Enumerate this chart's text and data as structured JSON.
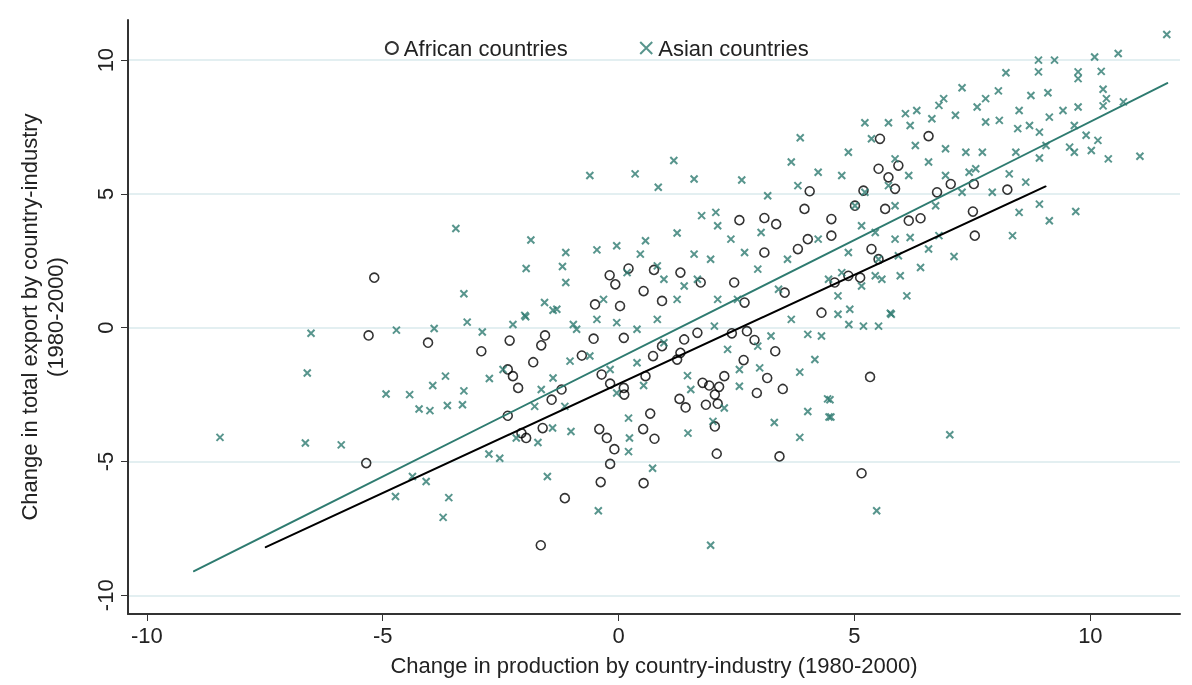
{
  "chart_data": {
    "type": "scatter",
    "xlabel": "Change in production by country-industry (1980-2000)",
    "ylabel": "Change in total export by country-industry\n(1980-2000)",
    "xlim": [
      -10.4,
      11.9
    ],
    "ylim": [
      -10.7,
      11.5
    ],
    "xticks": [
      -10,
      -5,
      0,
      5,
      10
    ],
    "yticks": [
      -10,
      -5,
      0,
      5,
      10
    ],
    "grid": "y",
    "legend": "top",
    "series": [
      {
        "name": "African countries",
        "color": "#000000",
        "marker": "circle",
        "x": [
          -5.3,
          -4.04,
          -5.35,
          -5.18,
          4.05,
          3.94,
          2.56,
          3.09,
          3.34,
          0.21,
          0.75,
          -0.19,
          -0.07,
          0.53,
          1.31,
          1.74,
          -0.5,
          0.92,
          2.45,
          4.01,
          4.51,
          3.8,
          3.09,
          2.67,
          3.52,
          0.03,
          5.54,
          6.57,
          5.93,
          5.51,
          5.72,
          5.86,
          5.19,
          6.75,
          7.04,
          7.53,
          8.24,
          5.65,
          5.01,
          6.15,
          6.4,
          7.51,
          7.55,
          5.36,
          5.51,
          4.51,
          4.87,
          5.12,
          4.58,
          -2.91,
          -2.31,
          -1.56,
          -1.64,
          -1.81,
          -2.35,
          -2.24,
          -2.13,
          -0.78,
          -0.53,
          -1.21,
          -1.42,
          -2.35,
          -2.06,
          -1.96,
          -1.61,
          -0.36,
          -0.18,
          0.11,
          0.12,
          -0.41,
          -0.25,
          -0.09,
          -0.18,
          -0.38,
          -1.14,
          -1.65,
          0.52,
          0.76,
          0.67,
          0.53,
          0.57,
          0.73,
          0.92,
          1.24,
          1.31,
          1.39,
          1.67,
          1.29,
          1.42,
          1.78,
          1.92,
          2.13,
          2.24,
          2.04,
          1.85,
          2.1,
          2.04,
          2.08,
          2.4,
          2.72,
          2.88,
          2.65,
          3.32,
          3.15,
          2.93,
          3.48,
          3.41,
          4.3,
          0.11,
          5.33,
          5.15
        ],
        "values": [
          -0.29,
          -0.56,
          -5.06,
          1.87,
          5.1,
          4.44,
          4.02,
          4.1,
          3.87,
          2.21,
          2.16,
          1.96,
          1.62,
          1.37,
          2.06,
          1.69,
          0.87,
          1.0,
          1.69,
          3.31,
          4.06,
          2.94,
          2.81,
          0.94,
          1.31,
          0.81,
          7.06,
          7.16,
          6.06,
          5.94,
          5.62,
          5.19,
          5.12,
          5.06,
          5.37,
          5.37,
          5.16,
          4.44,
          4.56,
          4.0,
          4.09,
          4.34,
          3.44,
          2.94,
          2.56,
          3.44,
          1.94,
          1.87,
          1.69,
          -0.88,
          -0.48,
          -0.29,
          -0.66,
          -1.29,
          -1.56,
          -1.81,
          -2.25,
          -1.04,
          -0.41,
          -2.31,
          -2.69,
          -3.29,
          -3.94,
          -4.12,
          -3.75,
          -1.75,
          -2.09,
          -2.25,
          -2.5,
          -3.79,
          -4.12,
          -4.54,
          -5.09,
          -5.77,
          -6.37,
          -8.13,
          -3.79,
          -4.15,
          -3.21,
          -5.81,
          -1.81,
          -1.06,
          -0.69,
          -1.19,
          -0.94,
          -0.44,
          -0.19,
          -2.66,
          -2.98,
          -2.06,
          -2.16,
          -2.21,
          -1.81,
          -2.5,
          -2.88,
          -2.84,
          -3.69,
          -4.71,
          -0.21,
          -0.13,
          -0.46,
          -1.21,
          -0.88,
          -1.88,
          -2.44,
          -2.29,
          -4.81,
          0.56,
          -0.38,
          -1.84,
          -5.44
        ]
      },
      {
        "name": "Asian countries",
        "color": "#2e7b70",
        "marker": "cross",
        "x": [
          -8.45,
          -6.52,
          -6.6,
          -6.64,
          -5.88,
          -4.71,
          -3.91,
          -3.21,
          -4.93,
          -4.43,
          -4.23,
          -4.0,
          -3.94,
          -3.67,
          -3.63,
          -3.31,
          -3.28,
          -4.37,
          -4.08,
          -4.73,
          -3.6,
          -3.72,
          -3.45,
          -3.28,
          3.85,
          1.17,
          -0.61,
          0.35,
          0.84,
          1.6,
          2.61,
          3.66,
          -1.86,
          -1.12,
          -1.96,
          -1.19,
          -1.12,
          -1.57,
          -1.39,
          -0.46,
          -0.04,
          0.57,
          1.24,
          1.76,
          2.06,
          3.16,
          0.46,
          1.6,
          0.82,
          2.38,
          2.67,
          3.02,
          1.95,
          0.18,
          -0.32,
          0.96,
          1.39,
          -1.99,
          2.1,
          3.8,
          4.23,
          11.62,
          10.59,
          10.09,
          9.24,
          8.9,
          8.9,
          9.74,
          10.23,
          9.74,
          8.21,
          7.28,
          8.05,
          8.74,
          9.1,
          10.27,
          10.34,
          10.7,
          10.27,
          9.74,
          9.42,
          9.13,
          8.49,
          7.78,
          7.6,
          6.89,
          6.79,
          6.32,
          6.08,
          5.22,
          5.72,
          6.18,
          6.64,
          7.14,
          7.78,
          8.07,
          8.71,
          8.92,
          9.66,
          9.91,
          10.16,
          9.56,
          10.02,
          9.66,
          10.38,
          11.05,
          8.92,
          9.06,
          8.46,
          8.42,
          8.28,
          8.63,
          8.49,
          8.92,
          9.13,
          9.69,
          8.35,
          7.11,
          6.4,
          5.97,
          6.11,
          5.76,
          5.58,
          6.57,
          6.18,
          6.79,
          4.9,
          4.65,
          4.65,
          7.28,
          7.57,
          7.92,
          4.87,
          4.73,
          5.36,
          5.86,
          6.29,
          6.57,
          6.93,
          7.36,
          7.71,
          7.43,
          6.93,
          6.15,
          5.72,
          5.22,
          5.01,
          5.86,
          6.72,
          5.44,
          5.86,
          5.15,
          4.87,
          5.51,
          5.93,
          5.44,
          5.15,
          4.73,
          -2.74,
          -2.75,
          -2.52,
          -1.71,
          -1.51,
          -1.01,
          -1.4,
          -0.43,
          0.21,
          0.23,
          0.21,
          0.72,
          1.47,
          1.95,
          2.0,
          2.24,
          3.3,
          3.84,
          4.01,
          4.43,
          4.46,
          3.84,
          4.16,
          2.56,
          2.56,
          2.99,
          1.53,
          1.46,
          0.53,
          -0.04,
          -1.14,
          -1.64,
          -1.78,
          -2.17,
          -2.24,
          -1.97,
          -2.89,
          -2.45,
          -1.03,
          -1.39,
          -0.61,
          -0.18,
          0.39,
          0.96,
          -0.96,
          -0.04,
          2.03,
          3.23,
          3.66,
          4.01,
          4.3,
          2.95,
          2.31,
          7.02,
          5.47,
          4.88,
          5.19,
          5.51,
          5.78,
          4.48,
          4.5,
          1.67,
          1.24,
          2.52,
          2.95,
          3.58,
          4.23,
          4.45,
          3.39,
          2.1,
          0.82,
          0.39,
          -0.46,
          -0.89,
          -1.31
        ],
        "values": [
          -4.1,
          -0.21,
          -1.69,
          -4.31,
          -4.38,
          -0.09,
          -0.03,
          0.21,
          -2.48,
          -2.5,
          -3.04,
          -3.1,
          -2.16,
          -1.81,
          -2.91,
          -2.88,
          -2.36,
          -5.56,
          -5.75,
          -6.31,
          -6.35,
          -7.09,
          3.71,
          1.27,
          7.1,
          6.25,
          5.69,
          5.75,
          5.25,
          5.56,
          5.52,
          6.19,
          3.28,
          2.81,
          2.21,
          2.29,
          1.69,
          0.94,
          0.65,
          2.91,
          3.06,
          3.25,
          3.54,
          4.19,
          4.31,
          4.93,
          2.75,
          2.75,
          2.31,
          3.31,
          2.81,
          3.56,
          2.56,
          2.06,
          1.06,
          1.81,
          1.56,
          0.46,
          3.81,
          5.31,
          5.81,
          10.96,
          10.25,
          10.12,
          10.0,
          10.0,
          9.56,
          9.56,
          9.58,
          9.31,
          9.53,
          8.97,
          8.85,
          8.68,
          8.78,
          8.91,
          8.56,
          8.44,
          8.29,
          8.25,
          8.12,
          7.87,
          8.12,
          8.56,
          8.25,
          8.56,
          8.31,
          8.12,
          8.0,
          7.66,
          7.66,
          7.56,
          7.81,
          7.94,
          7.69,
          7.75,
          7.56,
          7.31,
          7.56,
          7.19,
          7.0,
          6.75,
          6.62,
          6.56,
          6.31,
          6.41,
          6.34,
          6.81,
          7.44,
          6.56,
          5.75,
          5.44,
          4.31,
          4.62,
          4.0,
          4.34,
          3.44,
          2.66,
          2.25,
          1.94,
          1.19,
          0.54,
          1.81,
          2.94,
          3.37,
          3.44,
          0.69,
          0.5,
          1.19,
          5.06,
          5.94,
          5.06,
          6.56,
          5.69,
          7.06,
          6.31,
          6.81,
          6.19,
          6.69,
          6.56,
          6.56,
          5.81,
          5.69,
          5.69,
          5.31,
          5.06,
          4.56,
          4.56,
          4.56,
          3.56,
          3.31,
          3.81,
          2.81,
          2.56,
          2.69,
          1.94,
          1.56,
          2.06,
          -1.9,
          -4.72,
          -4.88,
          -4.29,
          -5.56,
          -3.88,
          -3.75,
          -6.84,
          -3.38,
          -4.12,
          -4.63,
          -5.25,
          -3.94,
          -8.13,
          -3.5,
          -3.0,
          -3.54,
          -4.1,
          -3.13,
          -2.66,
          -3.34,
          -1.66,
          -1.19,
          -2.19,
          -1.56,
          -1.5,
          -2.31,
          -1.79,
          -2.16,
          -2.44,
          -2.94,
          -2.31,
          -2.94,
          -4.12,
          0.12,
          0.41,
          -0.16,
          -1.56,
          -1.25,
          -1.88,
          -1.06,
          -1.56,
          -1.31,
          -0.56,
          0.12,
          0.19,
          0.06,
          -0.31,
          0.31,
          -0.25,
          -0.31,
          -0.69,
          -0.81,
          -4.0,
          -6.84,
          0.12,
          0.06,
          0.06,
          0.5,
          -2.69,
          -3.34,
          1.81,
          1.06,
          1.06,
          2.19,
          2.56,
          3.31,
          1.81,
          1.44,
          1.06,
          0.31,
          -0.06,
          0.31,
          -0.06,
          0.69
        ]
      },
      {
        "type": "line",
        "color": "#2e7b70",
        "marker": "none",
        "x": [
          -9.0,
          11.63
        ],
        "values": [
          -9.1,
          9.14
        ]
      },
      {
        "type": "line",
        "color": "#000000",
        "marker": "none",
        "x": [
          -7.48,
          9.05
        ],
        "values": [
          -8.2,
          5.28
        ]
      }
    ]
  }
}
